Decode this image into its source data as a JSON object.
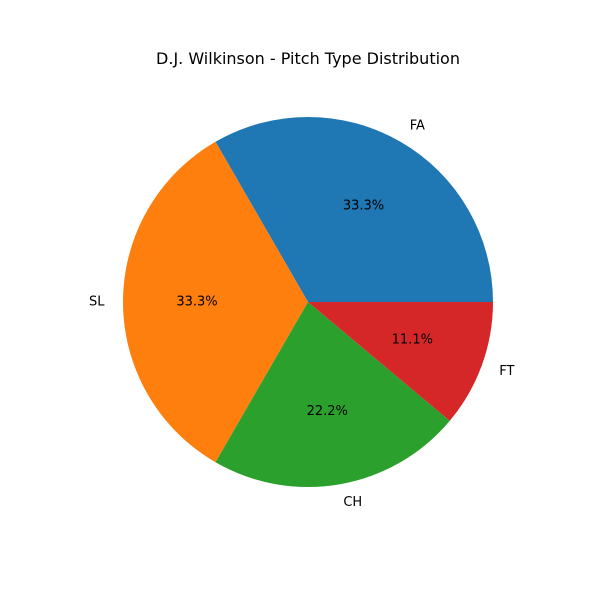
{
  "chart_data": {
    "type": "pie",
    "title": "D.J. Wilkinson - Pitch Type Distribution",
    "categories": [
      "FA",
      "SL",
      "CH",
      "FT"
    ],
    "values": [
      33.3,
      33.3,
      22.2,
      11.1
    ],
    "value_labels": [
      "33.3%",
      "33.3%",
      "22.2%",
      "11.1%"
    ],
    "colors": [
      "#1f77b4",
      "#ff7f0e",
      "#2ca02c",
      "#d62728"
    ],
    "start_angle_deg": 0,
    "direction": "counterclockwise",
    "legend": "none"
  }
}
